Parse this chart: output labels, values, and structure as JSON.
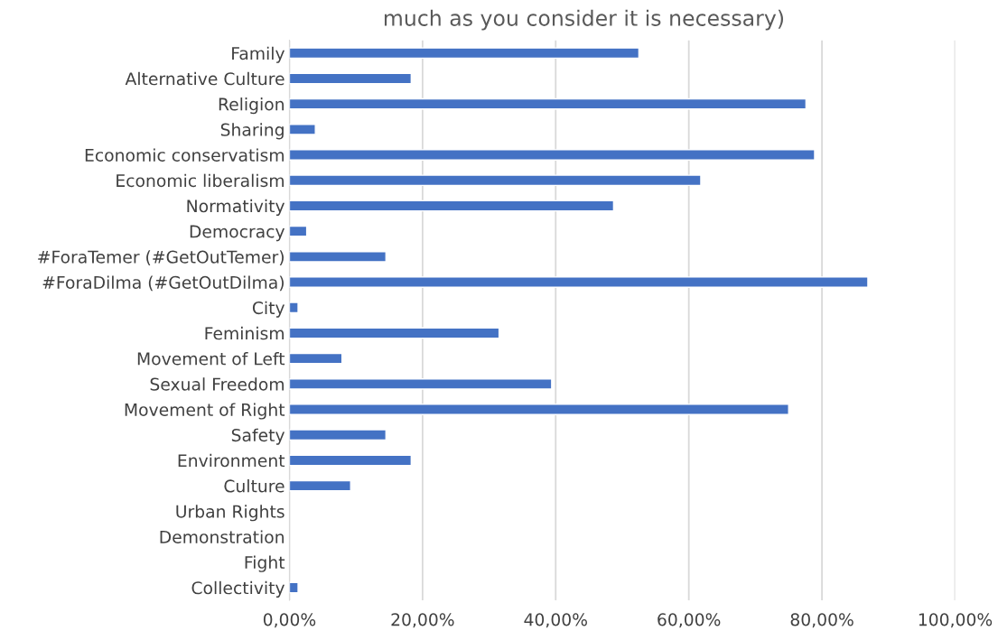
{
  "chart_data": {
    "type": "bar",
    "orientation": "horizontal",
    "title": "much as you consider it is necessary)",
    "categories": [
      "Family",
      "Alternative Culture",
      "Religion",
      "Sharing",
      "Economic conservatism",
      "Economic liberalism",
      "Normativity",
      "Democracy",
      "#ForaTemer (#GetOutTemer)",
      "#ForaDilma (#GetOutDilma)",
      "City",
      "Feminism",
      "Movement of Left",
      "Sexual Freedom",
      "Movement of Right",
      "Safety",
      "Environment",
      "Culture",
      "Urban Rights",
      "Demonstration",
      "Fight",
      "Collectivity"
    ],
    "values": [
      52.5,
      18.3,
      77.6,
      3.9,
      78.9,
      61.8,
      48.7,
      2.6,
      14.5,
      86.9,
      1.3,
      31.5,
      7.9,
      39.4,
      75.0,
      14.5,
      18.3,
      9.2,
      null,
      null,
      null,
      1.3
    ],
    "color": "#4472c4",
    "xlim": [
      0,
      100
    ],
    "xticks": [
      {
        "value": 0,
        "label": "0,00%"
      },
      {
        "value": 20,
        "label": "20,00%"
      },
      {
        "value": 40,
        "label": "40,00%"
      },
      {
        "value": 60,
        "label": "60,00%"
      },
      {
        "value": 80,
        "label": "80,00%"
      },
      {
        "value": 100,
        "label": "100,00%"
      }
    ],
    "grid": "x",
    "legend": false
  }
}
